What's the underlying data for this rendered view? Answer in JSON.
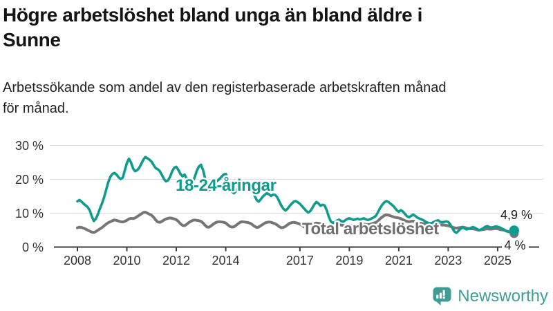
{
  "header": {
    "title_line1": "Högre arbetslöshet bland unga än bland äldre i",
    "title_line2": "Sunne",
    "subtitle_line1": "Arbetssökande som andel av den registerbaserade arbetskraften månad",
    "subtitle_line2": "för månad."
  },
  "branding": {
    "logo_text": "Newsworthy",
    "logo_icon": "bar-chart-speech-bubble-icon",
    "logo_color": "#3f9d95"
  },
  "colors": {
    "young_series": "#0f9b8d",
    "total_series": "#767676",
    "total_label_text": "#6f6f6f",
    "gridline": "#dcdcdc",
    "axis": "#3d3d3d",
    "axis_text": "#333333",
    "annotation_text": "#1a1a1a",
    "title_text": "#141414",
    "background": "#ffffff"
  },
  "chart_data": {
    "type": "line",
    "title": "Högre arbetslöshet bland unga än bland äldre i Sunne",
    "subtitle": "Arbetssökande som andel av den registerbaserade arbetskraften månad för månad.",
    "x_unit": "month",
    "x_start": "2008-01",
    "x_end": "2025-09",
    "grid": "horizontal",
    "legend_position": "inline-labels",
    "y_axis": {
      "ticks": [
        {
          "value": 0,
          "label": "0 %"
        },
        {
          "value": 10,
          "label": "10 %"
        },
        {
          "value": 20,
          "label": "20 %"
        },
        {
          "value": 30,
          "label": "30 %"
        }
      ],
      "range": [
        0,
        32
      ]
    },
    "x_axis": {
      "years": [
        2008,
        2010,
        2012,
        2014,
        2017,
        2019,
        2021,
        2023,
        2025
      ]
    },
    "series": [
      {
        "name": "18-24-åringar",
        "color": "#0f9b8d",
        "end_label": "4,9 %",
        "end_value": 4.9,
        "values": [
          13.5,
          13.9,
          13.4,
          12.8,
          12.3,
          11.8,
          10.8,
          9.0,
          7.7,
          8.4,
          9.8,
          11.5,
          13.0,
          14.8,
          17.0,
          19.2,
          20.8,
          21.6,
          21.9,
          21.4,
          20.6,
          20.1,
          20.5,
          22.6,
          24.8,
          26.1,
          25.0,
          23.2,
          22.4,
          22.7,
          23.4,
          24.6,
          25.8,
          26.6,
          26.2,
          25.8,
          25.2,
          24.2,
          23.3,
          23.0,
          22.4,
          21.3,
          20.1,
          19.4,
          19.7,
          20.8,
          22.4,
          23.4,
          23.7,
          22.8,
          21.6,
          20.9,
          21.4,
          20.3,
          18.9,
          18.5,
          19.3,
          20.8,
          22.6,
          23.8,
          24.3,
          22.7,
          20.2,
          18.0,
          16.9,
          17.3,
          18.3,
          19.2,
          19.6,
          20.1,
          20.8,
          21.4,
          21.6,
          20.3,
          18.0,
          16.4,
          15.9,
          16.6,
          17.6,
          18.3,
          18.1,
          17.8,
          17.5,
          17.3,
          17.2,
          16.6,
          15.2,
          13.9,
          13.4,
          14.1,
          14.9,
          15.5,
          15.9,
          15.6,
          15.1,
          15.5,
          15.4,
          14.7,
          13.5,
          12.2,
          11.3,
          10.8,
          11.3,
          12.1,
          12.8,
          13.4,
          13.6,
          13.2,
          12.8,
          12.1,
          11.4,
          10.7,
          10.2,
          10.6,
          11.5,
          12.6,
          13.3,
          12.9,
          12.2,
          12.5,
          12.3,
          10.9,
          9.0,
          7.6,
          7.1,
          7.4,
          7.8,
          8.1,
          7.7,
          7.5,
          7.9,
          8.3,
          8.5,
          8.3,
          8.0,
          8.2,
          8.4,
          8.1,
          8.3,
          8.5,
          8.2,
          8.0,
          8.2,
          8.5,
          8.8,
          9.3,
          10.4,
          11.6,
          12.5,
          13.2,
          13.6,
          13.3,
          12.8,
          12.3,
          11.7,
          10.9,
          10.4,
          10.9,
          10.5,
          9.8,
          9.1,
          8.8,
          9.2,
          9.6,
          9.2,
          8.7,
          8.4,
          8.2,
          7.9,
          7.5,
          7.2,
          7.0,
          7.1,
          7.4,
          7.7,
          7.9,
          7.5,
          7.3,
          7.4,
          7.6,
          7.4,
          6.7,
          5.6,
          4.6,
          4.2,
          4.8,
          5.4,
          5.8,
          5.5,
          5.2,
          5.4,
          5.7,
          5.9,
          5.7,
          5.3,
          5.0,
          5.2,
          5.6,
          6.0,
          6.2,
          5.9,
          5.8,
          5.9,
          6.1,
          6.0,
          5.8,
          5.5,
          5.2,
          4.8,
          4.5,
          4.6,
          4.8,
          4.9
        ]
      },
      {
        "name": "Total arbetslöshet",
        "color": "#767676",
        "end_label": "4 %",
        "end_value": 4.0,
        "values": [
          5.7,
          5.9,
          5.8,
          5.6,
          5.3,
          5.0,
          4.7,
          4.4,
          4.3,
          4.6,
          5.0,
          5.4,
          5.8,
          6.3,
          6.8,
          7.2,
          7.5,
          7.8,
          8.0,
          7.9,
          7.7,
          7.5,
          7.4,
          7.6,
          7.9,
          8.3,
          8.5,
          8.4,
          8.6,
          9.0,
          9.4,
          9.8,
          10.2,
          10.3,
          10.0,
          9.7,
          9.4,
          8.8,
          8.0,
          7.4,
          7.3,
          7.6,
          8.0,
          8.3,
          8.5,
          8.6,
          8.5,
          8.3,
          8.1,
          7.6,
          6.9,
          6.4,
          6.3,
          6.7,
          7.2,
          7.6,
          7.9,
          8.0,
          7.9,
          7.8,
          7.6,
          7.1,
          6.4,
          5.9,
          5.9,
          6.3,
          6.8,
          7.2,
          7.4,
          7.5,
          7.4,
          7.3,
          7.1,
          6.6,
          6.1,
          5.9,
          6.0,
          6.4,
          6.9,
          7.3,
          7.5,
          7.4,
          7.3,
          7.2,
          7.0,
          6.6,
          6.1,
          5.8,
          5.9,
          6.3,
          6.7,
          7.1,
          7.3,
          7.4,
          7.3,
          7.1,
          6.9,
          6.5,
          6.0,
          5.7,
          5.8,
          6.1,
          6.6,
          7.0,
          7.2,
          7.3,
          7.2,
          7.0,
          6.8,
          6.4,
          6.0,
          5.7,
          5.8,
          6.1,
          6.5,
          6.9,
          7.1,
          7.0,
          6.9,
          6.8,
          6.6,
          6.2,
          5.8,
          5.5,
          5.6,
          5.9,
          6.3,
          6.6,
          6.5,
          6.4,
          6.3,
          6.4,
          6.5,
          6.3,
          6.1,
          6.0,
          6.1,
          6.3,
          6.6,
          6.8,
          6.7,
          6.6,
          6.7,
          6.9,
          7.1,
          7.3,
          7.8,
          8.4,
          8.9,
          9.3,
          9.5,
          9.4,
          9.2,
          9.0,
          8.8,
          8.7,
          8.6,
          8.4,
          8.1,
          7.8,
          7.6,
          7.5,
          7.6,
          7.7,
          7.5,
          7.3,
          7.1,
          7.0,
          6.9,
          6.7,
          6.5,
          6.4,
          6.4,
          6.5,
          6.6,
          6.7,
          6.6,
          6.5,
          6.5,
          6.4,
          6.3,
          6.1,
          5.9,
          5.7,
          5.6,
          5.7,
          5.8,
          5.9,
          5.8,
          5.6,
          5.5,
          5.4,
          5.4,
          5.3,
          5.1,
          5.0,
          5.1,
          5.2,
          5.3,
          5.4,
          5.3,
          5.3,
          5.4,
          5.5,
          5.4,
          5.2,
          5.1,
          5.0,
          4.8,
          4.6,
          4.4,
          4.2,
          4.0
        ]
      }
    ]
  }
}
